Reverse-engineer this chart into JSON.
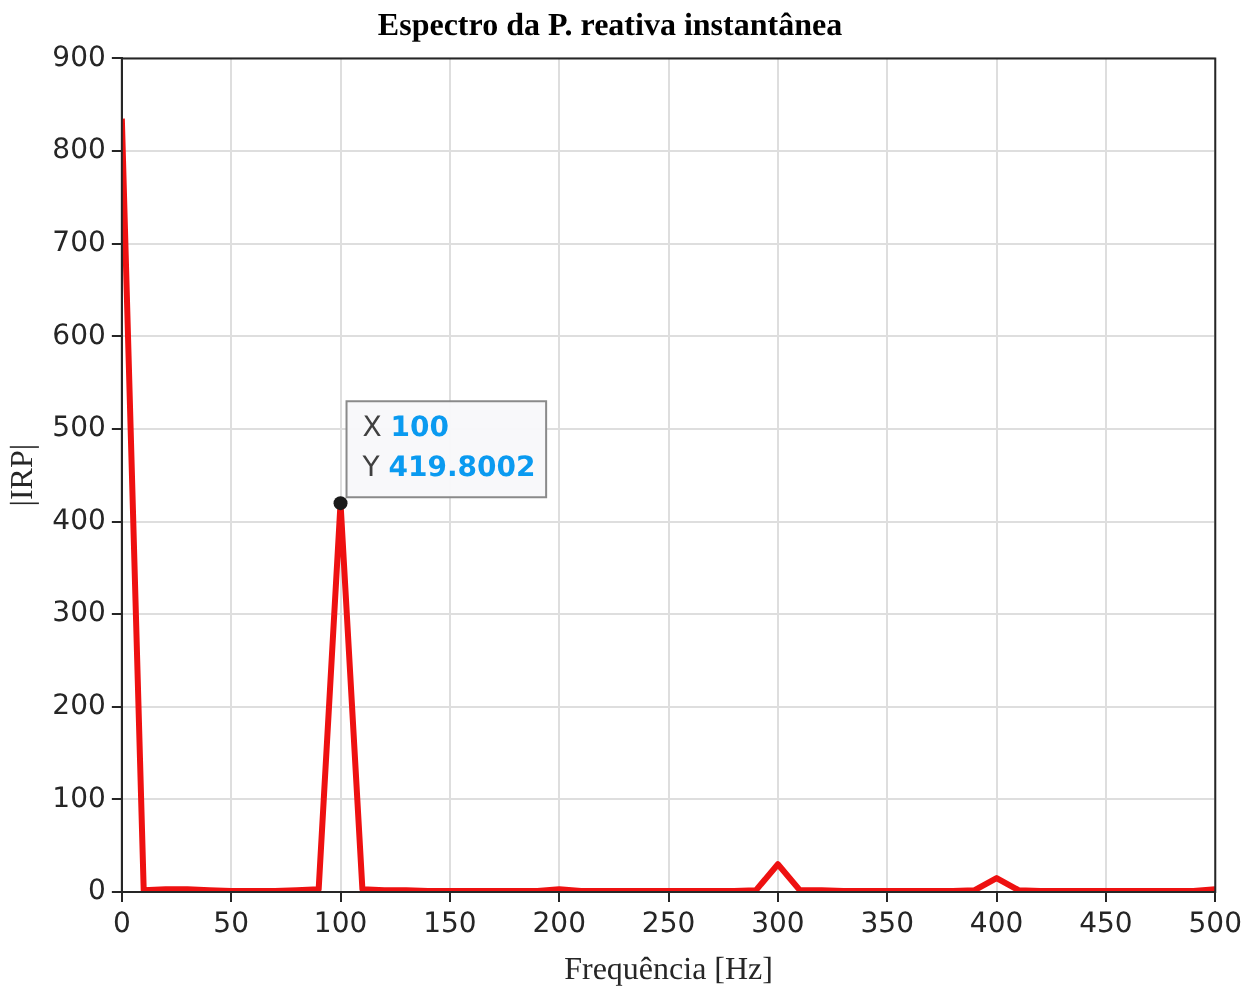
{
  "chart_data": {
    "type": "line",
    "title": "Espectro da P. reativa instantânea",
    "xlabel": "Frequência [Hz]",
    "ylabel": "|IRP|",
    "x": [
      0,
      10,
      20,
      30,
      40,
      50,
      60,
      70,
      80,
      90,
      100,
      110,
      120,
      130,
      140,
      150,
      160,
      170,
      180,
      190,
      200,
      210,
      220,
      230,
      240,
      250,
      260,
      270,
      280,
      290,
      300,
      310,
      320,
      330,
      340,
      350,
      360,
      370,
      380,
      390,
      400,
      410,
      420,
      430,
      440,
      450,
      460,
      470,
      480,
      490,
      500
    ],
    "series": [
      {
        "color": "#ee1111",
        "values": [
          835,
          2,
          3,
          3,
          2,
          1,
          1,
          1,
          2,
          3,
          419.8002,
          3,
          2,
          2,
          1,
          1,
          1,
          1,
          1,
          1,
          3,
          1,
          1,
          1,
          1,
          1,
          1,
          1,
          1,
          2,
          30,
          2,
          2,
          1,
          1,
          1,
          1,
          1,
          1,
          2,
          15,
          2,
          1,
          1,
          1,
          1,
          1,
          1,
          1,
          1,
          3
        ]
      }
    ],
    "xlim": [
      0,
      500
    ],
    "xticks": [
      0,
      50,
      100,
      150,
      200,
      250,
      300,
      350,
      400,
      450,
      500
    ],
    "ylim": [
      0,
      900
    ],
    "yticks": [
      0,
      100,
      200,
      300,
      400,
      500,
      600,
      700,
      800,
      900
    ],
    "grid": true,
    "legend": false,
    "marker": "none",
    "line_style": "solid",
    "annotations": [
      {
        "text": "X 100\nY 419.8002",
        "x": 100,
        "y": 419.8002
      }
    ]
  }
}
